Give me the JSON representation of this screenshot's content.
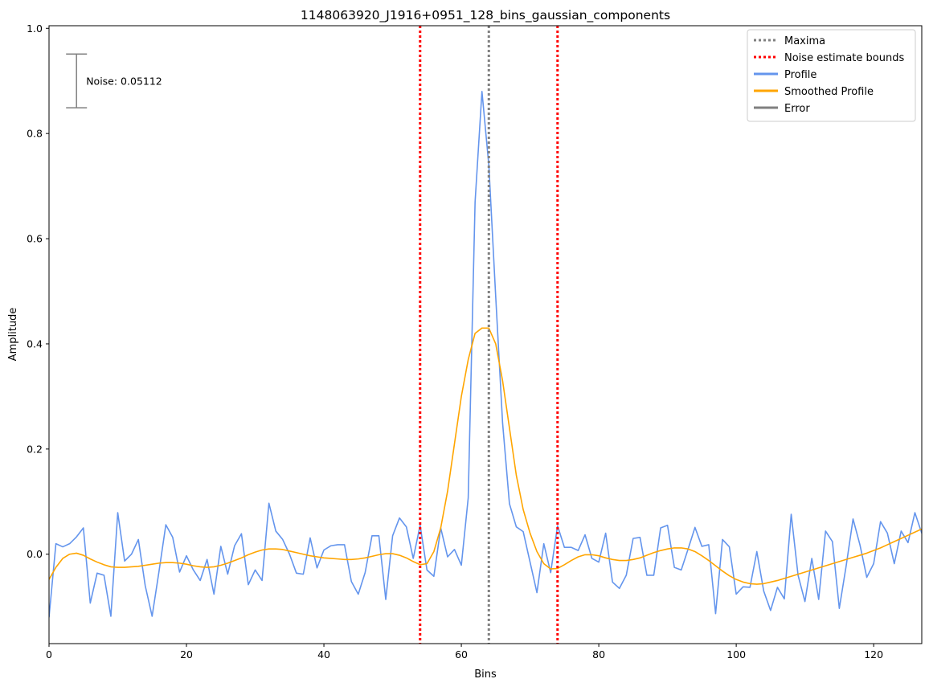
{
  "chart_data": {
    "type": "line",
    "title": "1148063920_J1916+0951_128_bins_gaussian_components",
    "xlabel": "Bins",
    "ylabel": "Amplitude",
    "xlim": [
      0,
      127
    ],
    "ylim": [
      -0.17,
      1.005
    ],
    "x_ticks": [
      0,
      20,
      40,
      60,
      80,
      100,
      120
    ],
    "y_ticks": [
      0.0,
      0.2,
      0.4,
      0.6,
      0.8,
      1.0
    ],
    "x_tick_labels": [
      "0",
      "20",
      "40",
      "60",
      "80",
      "100",
      "120"
    ],
    "y_tick_labels": [
      "0.0",
      "0.2",
      "0.4",
      "0.6",
      "0.8",
      "1.0"
    ],
    "grid": false,
    "legend_position": "top-right",
    "legend": [
      {
        "label": "Maxima",
        "color": "#808080",
        "style": "dotted"
      },
      {
        "label": "Noise estimate bounds",
        "color": "#ff0000",
        "style": "dotted"
      },
      {
        "label": "Profile",
        "color": "#6495ed",
        "style": "solid"
      },
      {
        "label": "Smoothed Profile",
        "color": "#ffa500",
        "style": "solid"
      },
      {
        "label": "Error",
        "color": "#808080",
        "style": "solid"
      }
    ],
    "vlines": [
      {
        "name": "Maxima",
        "x": 64,
        "color": "#808080"
      },
      {
        "name": "Noise estimate bounds",
        "x": 54,
        "color": "#ff0000"
      },
      {
        "name": "Noise estimate bounds",
        "x": 74,
        "color": "#ff0000"
      }
    ],
    "error_bar": {
      "x": 4,
      "y": 0.9,
      "half_height": 0.0511,
      "label": "Noise: 0.05112",
      "color": "#808080"
    },
    "series": [
      {
        "name": "Profile",
        "color": "#6495ed",
        "values": [
          -0.12,
          0.02,
          0.014,
          0.02,
          0.033,
          0.05,
          -0.093,
          -0.036,
          -0.04,
          -0.118,
          0.079,
          -0.013,
          0.0,
          0.028,
          -0.06,
          -0.118,
          -0.033,
          0.056,
          0.032,
          -0.034,
          -0.003,
          -0.03,
          -0.05,
          -0.01,
          -0.076,
          0.015,
          -0.038,
          0.016,
          0.039,
          -0.058,
          -0.03,
          -0.05,
          0.097,
          0.044,
          0.028,
          0.0,
          -0.036,
          -0.038,
          0.031,
          -0.026,
          0.008,
          0.016,
          0.018,
          0.018,
          -0.052,
          -0.076,
          -0.035,
          0.035,
          0.035,
          -0.086,
          0.035,
          0.069,
          0.052,
          -0.008,
          0.055,
          -0.03,
          -0.042,
          0.05,
          -0.005,
          0.009,
          -0.021,
          0.107,
          0.67,
          0.88,
          0.74,
          0.49,
          0.25,
          0.096,
          0.052,
          0.043,
          -0.015,
          -0.073,
          0.02,
          -0.035,
          0.054,
          0.013,
          0.013,
          0.007,
          0.037,
          -0.008,
          -0.015,
          0.04,
          -0.053,
          -0.065,
          -0.04,
          0.03,
          0.032,
          -0.04,
          -0.04,
          0.05,
          0.055,
          -0.025,
          -0.03,
          0.01,
          0.051,
          0.015,
          0.018,
          -0.113,
          0.028,
          0.014,
          -0.076,
          -0.062,
          -0.063,
          0.005,
          -0.07,
          -0.107,
          -0.063,
          -0.085,
          0.076,
          -0.04,
          -0.09,
          -0.008,
          -0.086,
          0.044,
          0.024,
          -0.103,
          -0.022,
          0.067,
          0.018,
          -0.044,
          -0.018,
          0.062,
          0.04,
          -0.018,
          0.044,
          0.022,
          0.079,
          0.04
        ]
      },
      {
        "name": "Smoothed Profile",
        "color": "#ffa500",
        "values": [
          -0.048,
          -0.025,
          -0.008,
          0.0,
          0.002,
          -0.002,
          -0.009,
          -0.015,
          -0.02,
          -0.024,
          -0.025,
          -0.025,
          -0.024,
          -0.023,
          -0.021,
          -0.019,
          -0.017,
          -0.016,
          -0.016,
          -0.017,
          -0.019,
          -0.022,
          -0.024,
          -0.025,
          -0.024,
          -0.021,
          -0.017,
          -0.012,
          -0.007,
          -0.001,
          0.004,
          0.008,
          0.01,
          0.01,
          0.009,
          0.006,
          0.003,
          0.0,
          -0.003,
          -0.005,
          -0.007,
          -0.008,
          -0.009,
          -0.01,
          -0.01,
          -0.009,
          -0.007,
          -0.004,
          -0.001,
          0.001,
          0.001,
          -0.002,
          -0.007,
          -0.014,
          -0.02,
          -0.018,
          0.005,
          0.05,
          0.12,
          0.21,
          0.3,
          0.37,
          0.42,
          0.43,
          0.43,
          0.4,
          0.33,
          0.24,
          0.15,
          0.085,
          0.04,
          0.005,
          -0.018,
          -0.028,
          -0.027,
          -0.02,
          -0.012,
          -0.005,
          -0.001,
          -0.001,
          -0.003,
          -0.007,
          -0.01,
          -0.012,
          -0.012,
          -0.01,
          -0.007,
          -0.002,
          0.003,
          0.007,
          0.01,
          0.012,
          0.012,
          0.01,
          0.005,
          -0.003,
          -0.012,
          -0.022,
          -0.032,
          -0.041,
          -0.048,
          -0.053,
          -0.056,
          -0.057,
          -0.056,
          -0.053,
          -0.05,
          -0.046,
          -0.042,
          -0.038,
          -0.034,
          -0.03,
          -0.026,
          -0.022,
          -0.018,
          -0.014,
          -0.01,
          -0.006,
          -0.002,
          0.002,
          0.007,
          0.012,
          0.018,
          0.024,
          0.03,
          0.036,
          0.042,
          0.048
        ]
      }
    ]
  }
}
